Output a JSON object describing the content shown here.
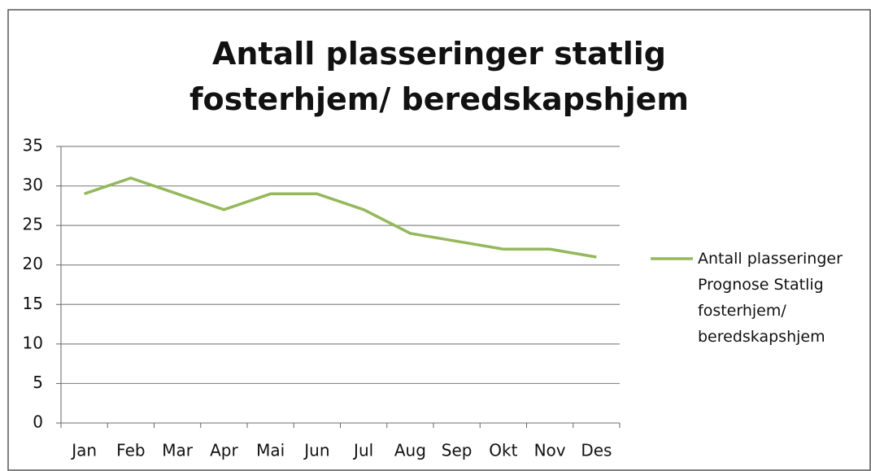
{
  "chart_data": {
    "type": "line",
    "title": "Antall plasseringer statlig fosterhjem/ beredskapshjem",
    "categories": [
      "Jan",
      "Feb",
      "Mar",
      "Apr",
      "Mai",
      "Jun",
      "Jul",
      "Aug",
      "Sep",
      "Okt",
      "Nov",
      "Des"
    ],
    "series": [
      {
        "name": "Antall plasseringer Prognose Statlig fosterhjem/ beredskapshjem",
        "color": "#94b85a",
        "values": [
          29,
          31,
          29,
          27,
          29,
          29,
          27,
          24,
          23,
          22,
          22,
          21
        ]
      }
    ],
    "ylim": [
      0,
      35
    ],
    "yticks": [
      0,
      5,
      10,
      15,
      20,
      25,
      30,
      35
    ],
    "grid": true,
    "legend": "right"
  }
}
